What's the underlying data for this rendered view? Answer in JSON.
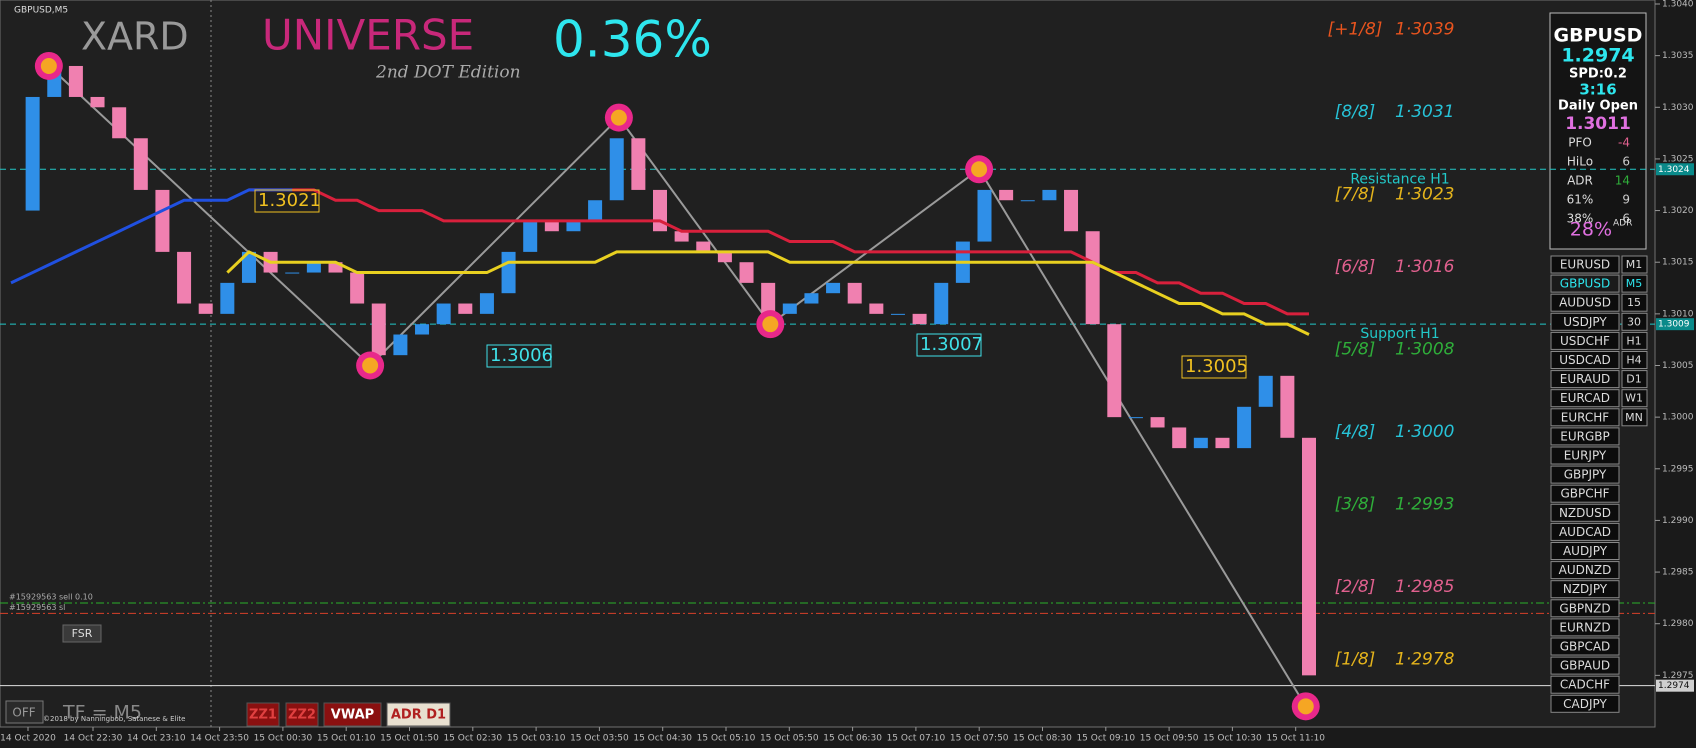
{
  "chart_data": {
    "type": "candlestick",
    "symbol": "GBPUSD,M5",
    "ylim": [
      1.297,
      1.304
    ],
    "yticks": [
      {
        "value": 1.304,
        "label": "1.3040"
      },
      1.3035,
      {
        "value": 1.303,
        "label": "1.3030"
      },
      1.3025,
      {
        "value": 1.302,
        "label": "1.3020"
      },
      1.3015,
      {
        "value": 1.301,
        "label": "1.3010"
      },
      1.3005,
      {
        "value": 1.3,
        "label": "1.3000"
      },
      1.2995,
      {
        "value": 1.299,
        "label": "1.2990"
      },
      1.2985,
      {
        "value": 1.298,
        "label": "1.2980"
      },
      1.2975
    ],
    "x_labels": [
      "14 Oct 2020",
      "14 Oct 22:30",
      "14 Oct 23:10",
      "14 Oct 23:50",
      "15 Oct 00:30",
      "15 Oct 01:10",
      "15 Oct 01:50",
      "15 Oct 02:30",
      "15 Oct 03:10",
      "15 Oct 03:50",
      "15 Oct 04:30",
      "15 Oct 05:10",
      "15 Oct 05:50",
      "15 Oct 06:30",
      "15 Oct 07:10",
      "15 Oct 07:50",
      "15 Oct 08:30",
      "15 Oct 09:10",
      "15 Oct 09:50",
      "15 Oct 10:30",
      "15 Oct 11:10"
    ],
    "series": [
      {
        "kind": "price",
        "up_color": "#2f8fe8",
        "down_color": "#f080b0",
        "values": [
          1.302,
          1.3031,
          1.3034,
          1.3031,
          1.303,
          1.3027,
          1.3022,
          1.3016,
          1.3011,
          1.301,
          1.3013,
          1.3016,
          1.3014,
          1.3014,
          1.3015,
          1.3014,
          1.3011,
          1.3006,
          1.3008,
          1.3009,
          1.3011,
          1.301,
          1.3012,
          1.3016,
          1.3019,
          1.3018,
          1.3019,
          1.3021,
          1.3027,
          1.3022,
          1.3018,
          1.3017,
          1.3016,
          1.3015,
          1.3013,
          1.301,
          1.3011,
          1.3012,
          1.3013,
          1.3011,
          1.301,
          1.301,
          1.3009,
          1.3013,
          1.3017,
          1.3022,
          1.3021,
          1.3021,
          1.3022,
          1.3018,
          1.3009,
          1.3,
          1.3,
          1.2999,
          1.2997,
          1.2998,
          1.2997,
          1.3001,
          1.3004,
          1.2998,
          1.2975
        ]
      },
      {
        "kind": "line",
        "color": "#d8203c",
        "values": [
          null,
          null,
          null,
          null,
          null,
          null,
          null,
          null,
          null,
          null,
          null,
          1.3022,
          1.3022,
          1.3022,
          1.3022,
          1.3021,
          1.3021,
          1.302,
          1.302,
          1.302,
          1.3019,
          1.3019,
          1.3019,
          1.3019,
          1.3019,
          1.3019,
          1.3019,
          1.3019,
          1.3019,
          1.3019,
          1.3019,
          1.3018,
          1.3018,
          1.3018,
          1.3018,
          1.3018,
          1.3017,
          1.3017,
          1.3017,
          1.3016,
          1.3016,
          1.3016,
          1.3016,
          1.3016,
          1.3016,
          1.3016,
          1.3016,
          1.3016,
          1.3016,
          1.3016,
          1.3015,
          1.3014,
          1.3014,
          1.3013,
          1.3013,
          1.3012,
          1.3012,
          1.3011,
          1.3011,
          1.301,
          1.301
        ]
      },
      {
        "kind": "line",
        "color": "#e8d020",
        "values": [
          null,
          null,
          null,
          null,
          null,
          null,
          null,
          null,
          null,
          null,
          1.3014,
          1.3016,
          1.3015,
          1.3015,
          1.3015,
          1.3015,
          1.3014,
          1.3014,
          1.3014,
          1.3014,
          1.3014,
          1.3014,
          1.3014,
          1.3015,
          1.3015,
          1.3015,
          1.3015,
          1.3015,
          1.3016,
          1.3016,
          1.3016,
          1.3016,
          1.3016,
          1.3016,
          1.3016,
          1.3016,
          1.3015,
          1.3015,
          1.3015,
          1.3015,
          1.3015,
          1.3015,
          1.3015,
          1.3015,
          1.3015,
          1.3015,
          1.3015,
          1.3015,
          1.3015,
          1.3015,
          1.3015,
          1.3014,
          1.3013,
          1.3012,
          1.3011,
          1.3011,
          1.301,
          1.301,
          1.3009,
          1.3009,
          1.3008
        ]
      },
      {
        "kind": "line",
        "color": "#2050e0",
        "values": [
          1.3013,
          1.3014,
          1.3015,
          1.3016,
          1.3017,
          1.3018,
          1.3019,
          1.302,
          1.3021,
          1.3021,
          1.3021,
          1.3022,
          1.3022,
          1.3022,
          null,
          null,
          null,
          null,
          null,
          null,
          null,
          null,
          null,
          null,
          null,
          null,
          null,
          null,
          null,
          null,
          null,
          null,
          null,
          null,
          null,
          null,
          null,
          null,
          null,
          null,
          null,
          null,
          null,
          null,
          null,
          null,
          null,
          null,
          null,
          null,
          null,
          null,
          null,
          null,
          null,
          null,
          null,
          null,
          null,
          null,
          null
        ]
      }
    ],
    "pivots": {
      "x": [
        1.75,
        16.6,
        28.1,
        35.1,
        44.75,
        59.85
      ],
      "values": [
        1.3034,
        1.3005,
        1.3029,
        1.3009,
        1.3024,
        1.2972
      ],
      "ring_color": "#e8288a",
      "core_color": "#f5a623",
      "line_color": "#9a9a9a"
    },
    "levels": [
      {
        "value": 1.3024,
        "text": "Resistance H1",
        "color": "#22c8c8"
      },
      {
        "value": 1.3009,
        "text": "Support H1",
        "color": "#22c8c8"
      },
      {
        "value": 1.2974,
        "color": "#e0e0e0"
      }
    ],
    "order_lines": [
      {
        "value": 1.2982,
        "text": "#15929563 sell 0.10",
        "color": "#2ab02a"
      },
      {
        "value": 1.2981,
        "text": "#15929563 sl",
        "color": "#d8402a"
      }
    ],
    "murrey": [
      {
        "name": "[+1/8]",
        "value": 1.3039,
        "label": "1·3039",
        "color": "#e8541e"
      },
      {
        "name": "[8/8]",
        "value": 1.3031,
        "label": "1·3031",
        "color": "#27c3d8"
      },
      {
        "name": "[7/8]",
        "value": 1.3023,
        "label": "1·3023",
        "color": "#e5b41c"
      },
      {
        "name": "[6/8]",
        "value": 1.3016,
        "label": "1·3016",
        "color": "#e0608e"
      },
      {
        "name": "[5/8]",
        "value": 1.3008,
        "label": "1·3008",
        "color": "#2fae3a"
      },
      {
        "name": "[4/8]",
        "value": 1.3,
        "label": "1·3000",
        "color": "#27c3d8"
      },
      {
        "name": "[3/8]",
        "value": 1.2993,
        "label": "1·2993",
        "color": "#2fae3a"
      },
      {
        "name": "[2/8]",
        "value": 1.2985,
        "label": "1·2985",
        "color": "#e0608e"
      },
      {
        "name": "[1/8]",
        "value": 1.2978,
        "label": "1·2978",
        "color": "#e5b41c"
      }
    ],
    "annotations": [
      {
        "text": "1.3021",
        "color": "#f0c020"
      },
      {
        "text": "1.3006",
        "color": "#40e0e8"
      },
      {
        "text": "1.3007",
        "color": "#40e0e8"
      },
      {
        "text": "1.3005",
        "color": "#f0c020"
      }
    ]
  },
  "header": {
    "brand": "XARD",
    "name": "UNIVERSE",
    "edition": "2nd DOT Edition",
    "change": "0.36%"
  },
  "info_panel": {
    "symbol": "GBPUSD",
    "price": "1.2974",
    "spread": "SPD:0.2",
    "timer": "3:16",
    "open_label": "Daily Open",
    "open": "1.3011",
    "rows": [
      {
        "name": "PFO",
        "value": -4
      },
      {
        "name": "HiLo",
        "value": 6
      },
      {
        "name": "ADR",
        "value": 14
      },
      {
        "name": "61%",
        "value": 9
      },
      {
        "name": "38%",
        "value": 6
      }
    ],
    "adr_pct": "28%",
    "adr_sup": "ADR"
  },
  "symbol_list": {
    "active_symbol": "GBPUSD",
    "active_timeframe": "M5",
    "symbols": [
      "EURUSD",
      "GBPUSD",
      "AUDUSD",
      "USDJPY",
      "USDCHF",
      "USDCAD",
      "EURAUD",
      "EURCAD",
      "EURCHF",
      "EURGBP",
      "EURJPY",
      "GBPJPY",
      "GBPCHF",
      "NZDUSD",
      "AUDCAD",
      "AUDJPY",
      "AUDNZD",
      "NZDJPY",
      "GBPNZD",
      "EURNZD",
      "GBPCAD",
      "GBPAUD",
      "CADCHF",
      "CADJPY"
    ],
    "timeframes": [
      "M1",
      "M5",
      "15",
      "30",
      "H1",
      "H4",
      "D1",
      "W1",
      "MN"
    ]
  },
  "buttons": {
    "fsr": "FSR",
    "off": "OFF",
    "tf": "TF = M5",
    "copyright": "©2018 by Nanningbob, Satanese & Elite",
    "tools": [
      "ZZ1",
      "ZZ2",
      "VWAP",
      "ADR D1"
    ]
  }
}
